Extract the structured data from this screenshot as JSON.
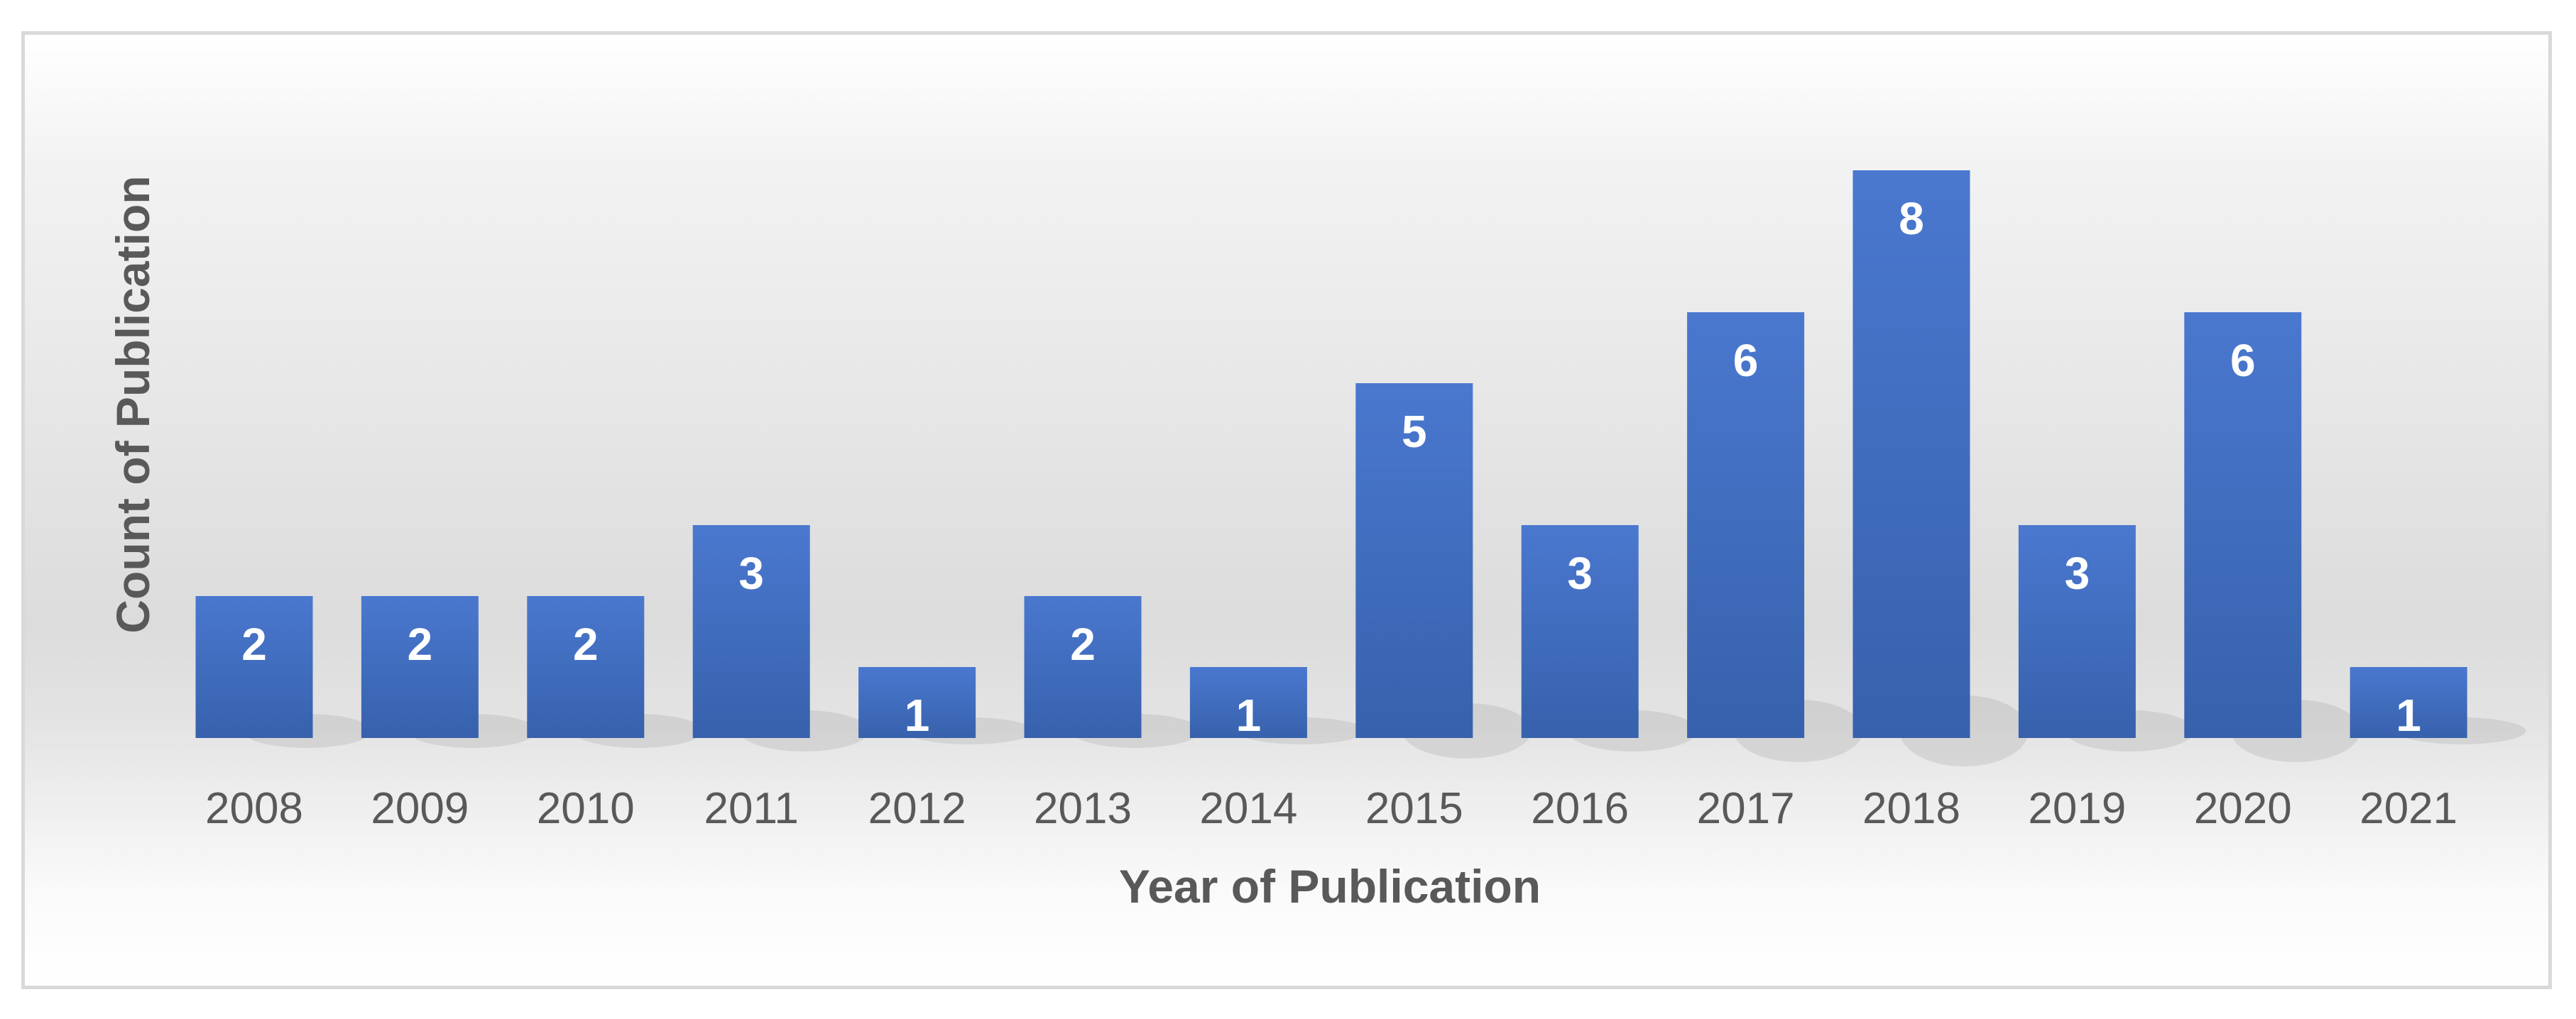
{
  "chart_data": {
    "type": "bar",
    "title": "",
    "xlabel": "Year of Publication",
    "ylabel": "Count of Publication",
    "categories": [
      "2008",
      "2009",
      "2010",
      "2011",
      "2012",
      "2013",
      "2014",
      "2015",
      "2016",
      "2017",
      "2018",
      "2019",
      "2020",
      "2021"
    ],
    "values": [
      2,
      2,
      2,
      3,
      1,
      2,
      1,
      5,
      3,
      6,
      8,
      3,
      6,
      1
    ],
    "ylim": [
      0,
      8
    ],
    "grid": false,
    "legend": "none",
    "bar_color": "#4472c4"
  }
}
